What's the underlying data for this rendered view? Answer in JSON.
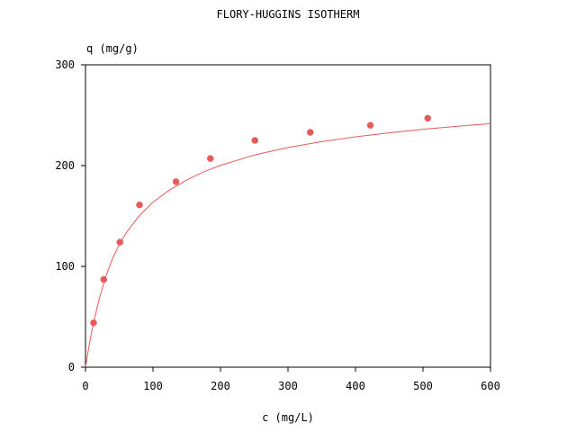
{
  "chart_data": {
    "type": "scatter",
    "title": "FLORY-HUGGINS ISOTHERM",
    "xlabel": "c (mg/L)",
    "ylabel": "q (mg/g)",
    "xlim": [
      0,
      600
    ],
    "ylim": [
      0,
      300
    ],
    "x_ticks": [
      0,
      100,
      200,
      300,
      400,
      500,
      600
    ],
    "y_ticks": [
      0,
      100,
      200,
      300
    ],
    "grid": false,
    "legend": "none",
    "colors": {
      "series": "#e85a5a",
      "fit": "#e85a5a",
      "axis": "#000000",
      "background": "#ffffff"
    },
    "series": [
      {
        "type": "scatter",
        "x": [
          12,
          27,
          51,
          80,
          134,
          185,
          251,
          333,
          422,
          507
        ],
        "y": [
          44,
          87,
          124,
          161,
          184,
          207,
          225,
          233,
          240,
          247
        ]
      },
      {
        "type": "line",
        "x": [
          0,
          5,
          10,
          15,
          20,
          30,
          40,
          50,
          60,
          80,
          100,
          125,
          150,
          175,
          200,
          250,
          300,
          350,
          400,
          450,
          500,
          550,
          600
        ],
        "y": [
          0,
          20.0,
          38.3,
          52.8,
          67.1,
          90.0,
          107.6,
          121.6,
          133.1,
          150.5,
          163.7,
          176.1,
          185.8,
          193.8,
          200.2,
          210.5,
          218.0,
          223.8,
          228.6,
          232.5,
          236.0,
          239.0,
          241.6
        ]
      }
    ]
  }
}
